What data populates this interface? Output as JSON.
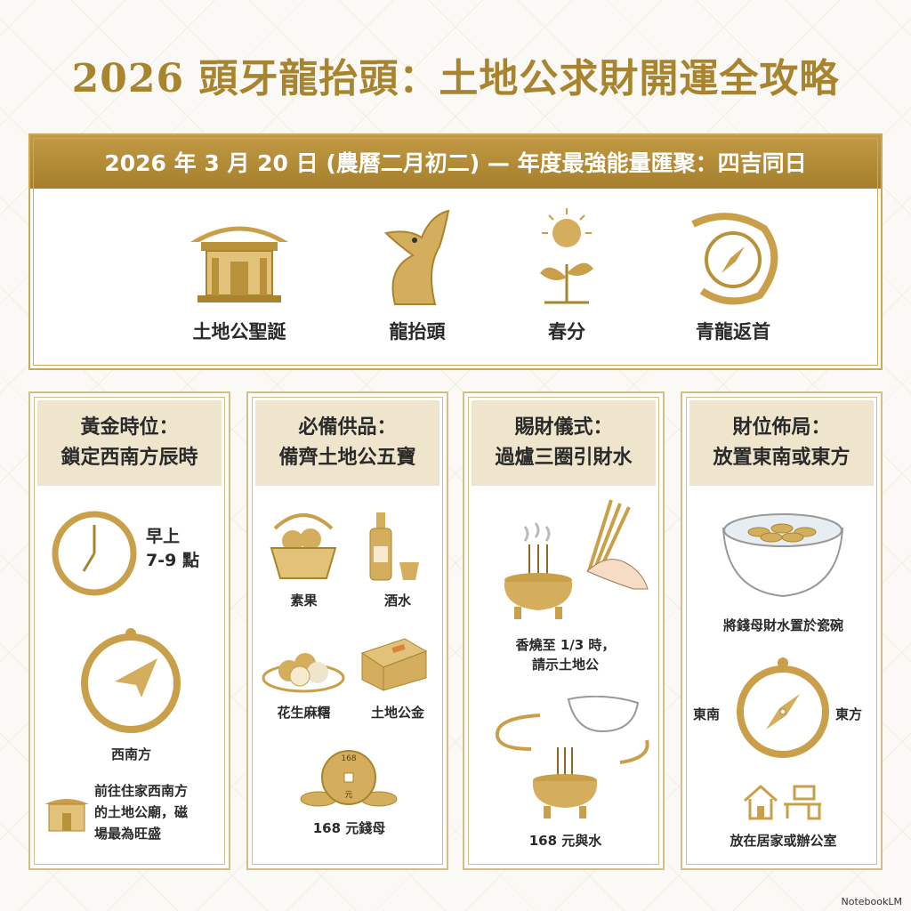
{
  "title": "2026 頭牙龍抬頭：土地公求財開運全攻略",
  "banner": "2026 年 3 月 20 日 (農曆二月初二) — 年度最強能量匯聚：四吉同日",
  "top_items": [
    {
      "label": "土地公聖誕",
      "icon": "temple-icon"
    },
    {
      "label": "龍抬頭",
      "icon": "dragon-icon"
    },
    {
      "label": "春分",
      "icon": "sprout-sun-icon"
    },
    {
      "label": "青龍返首",
      "icon": "dragon-compass-icon"
    }
  ],
  "cards": [
    {
      "title1": "黃金時位：",
      "title2": "鎖定西南方辰時",
      "time": "早上\n7-9 點",
      "direction": "西南方",
      "note": "前往住家西南方\n的土地公廟，磁\n場最為旺盛"
    },
    {
      "title1": "必備供品：",
      "title2": "備齊土地公五寶",
      "items": [
        "素果",
        "酒水",
        "花生麻糬",
        "土地公金",
        "168 元錢母"
      ],
      "coin_text": "168",
      "coin_unit": "元"
    },
    {
      "title1": "賜財儀式：",
      "title2": "過爐三圈引財水",
      "step1": "香燒至 1/3 時，\n請示土地公",
      "step2": "168 元與水"
    },
    {
      "title1": "財位佈局：",
      "title2": "放置東南或東方",
      "bowl": "將錢母財水置於瓷碗",
      "left_dir": "東南",
      "right_dir": "東方",
      "place": "放在居家或辦公室"
    }
  ],
  "watermark": "NotebookLM",
  "colors": {
    "gold": "#b8923a",
    "beige": "#efe4cc",
    "title": "#a8842f"
  }
}
